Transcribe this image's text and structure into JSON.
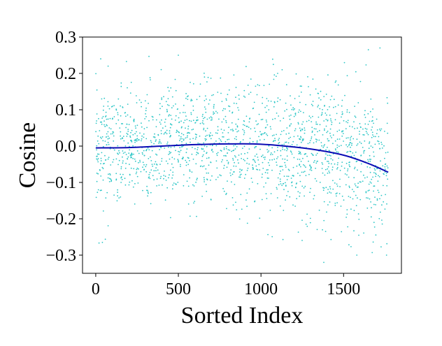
{
  "chart_data": {
    "type": "scatter",
    "title": "",
    "xlabel": "Sorted Index",
    "ylabel": "Cosine",
    "xlim": [
      -80,
      1850
    ],
    "ylim": [
      -0.35,
      0.3
    ],
    "xticks": [
      0,
      500,
      1000,
      1500
    ],
    "xtick_labels": [
      "0",
      "500",
      "1000",
      "1500"
    ],
    "yticks": [
      -0.3,
      -0.2,
      -0.1,
      0.0,
      0.1,
      0.2,
      0.3
    ],
    "ytick_labels": [
      "−0.3",
      "−0.2",
      "−0.1",
      "0.0",
      "0.1",
      "0.2",
      "0.3"
    ],
    "grid": false,
    "legend": "none",
    "n_points": 1770,
    "colors": {
      "scatter": "#2cc6c6",
      "trend": "#0a0ab4",
      "axes": "#000000"
    },
    "series": [
      {
        "type": "scatter",
        "note_visible_range": "points spread between about -0.32 and 0.27",
        "sample_points": [
          [
            30,
            0.24
          ],
          [
            75,
            0.22
          ],
          [
            500,
            0.25
          ],
          [
            1650,
            0.265
          ],
          [
            1720,
            0.27
          ],
          [
            1380,
            -0.32
          ],
          [
            1760,
            -0.3
          ],
          [
            40,
            -0.265
          ],
          [
            1580,
            -0.3
          ]
        ]
      },
      {
        "type": "line",
        "x": [
          0,
          200,
          400,
          600,
          800,
          950,
          1100,
          1300,
          1500,
          1650,
          1770
        ],
        "y": [
          -0.005,
          -0.004,
          0.0,
          0.004,
          0.006,
          0.006,
          0.002,
          -0.008,
          -0.025,
          -0.048,
          -0.072
        ]
      }
    ]
  }
}
